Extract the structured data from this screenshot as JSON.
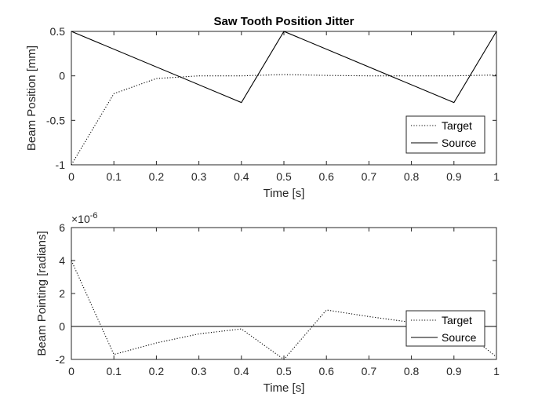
{
  "chart_data": [
    {
      "type": "line",
      "title": "Saw Tooth Position Jitter",
      "xlabel": "Time [s]",
      "ylabel": "Beam Position [mm]",
      "xlim": [
        0,
        1
      ],
      "ylim": [
        -1,
        0.5
      ],
      "xticks": [
        0,
        0.1,
        0.2,
        0.3,
        0.4,
        0.5,
        0.6,
        0.7,
        0.8,
        0.9,
        1
      ],
      "xtick_labels": [
        "0",
        "0.1",
        "0.2",
        "0.3",
        "0.4",
        "0.5",
        "0.6",
        "0.7",
        "0.8",
        "0.9",
        "1"
      ],
      "yticks": [
        -1,
        -0.5,
        0,
        0.5
      ],
      "ytick_labels": [
        "-1",
        "-0.5",
        "0",
        "0.5"
      ],
      "grid": false,
      "legend_position": "bottom-right",
      "series": [
        {
          "name": "Target",
          "style": "dotted",
          "color": "#000000",
          "x": [
            0,
            0.1,
            0.2,
            0.3,
            0.4,
            0.5,
            0.6,
            0.7,
            0.8,
            0.9,
            1
          ],
          "y": [
            -1.0,
            -0.2,
            -0.03,
            0.0,
            0.0,
            0.015,
            0.005,
            0.0,
            0.0,
            0.0,
            0.01
          ]
        },
        {
          "name": "Source",
          "style": "solid",
          "color": "#000000",
          "x": [
            0,
            0.4,
            0.5,
            0.9,
            1
          ],
          "y": [
            0.5,
            -0.3,
            0.5,
            -0.3,
            0.5
          ]
        }
      ]
    },
    {
      "type": "line",
      "title": "",
      "xlabel": "Time [s]",
      "ylabel": "Beam Pointing [radians]",
      "y_exponent_label": "×10",
      "y_exponent_power": "-6",
      "xlim": [
        0,
        1
      ],
      "ylim": [
        -2,
        6
      ],
      "xticks": [
        0,
        0.1,
        0.2,
        0.3,
        0.4,
        0.5,
        0.6,
        0.7,
        0.8,
        0.9,
        1
      ],
      "xtick_labels": [
        "0",
        "0.1",
        "0.2",
        "0.3",
        "0.4",
        "0.5",
        "0.6",
        "0.7",
        "0.8",
        "0.9",
        "1"
      ],
      "yticks": [
        -2,
        0,
        2,
        4,
        6
      ],
      "ytick_labels": [
        "-2",
        "0",
        "2",
        "4",
        "6"
      ],
      "grid": false,
      "legend_position": "bottom-right",
      "series": [
        {
          "name": "Target",
          "style": "dotted",
          "color": "#000000",
          "x": [
            0,
            0.1,
            0.2,
            0.3,
            0.4,
            0.5,
            0.6,
            0.7,
            0.8,
            0.9,
            1
          ],
          "y": [
            4.0,
            -1.7,
            -1.0,
            -0.45,
            -0.15,
            -2.0,
            1.0,
            0.6,
            0.25,
            0.2,
            -1.85
          ]
        },
        {
          "name": "Source",
          "style": "solid",
          "color": "#000000",
          "x": [
            0,
            1
          ],
          "y": [
            0,
            0
          ]
        }
      ]
    }
  ]
}
